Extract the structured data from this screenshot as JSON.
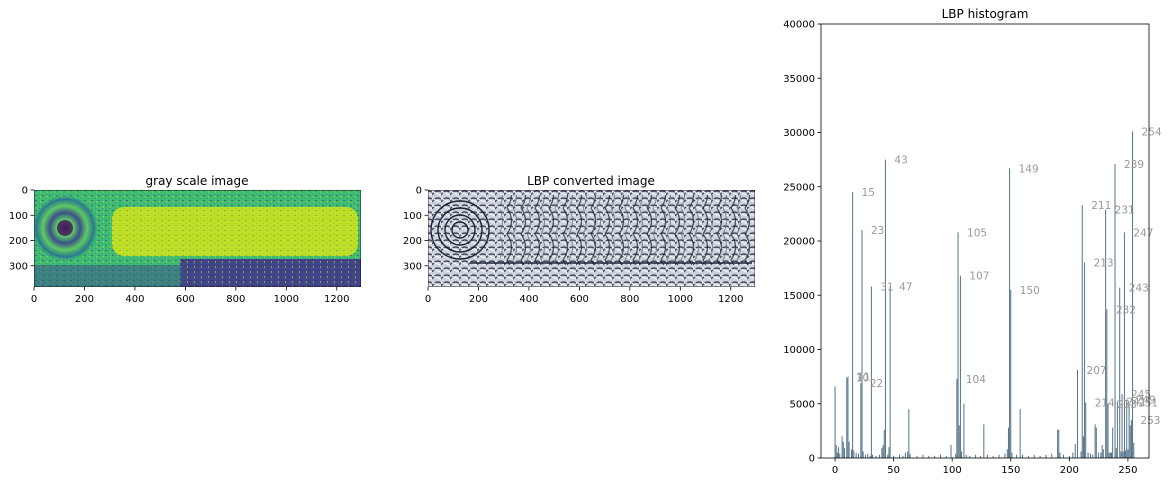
{
  "chart_data": [
    {
      "type": "image",
      "title": "gray scale image",
      "x_ticks": [
        "0",
        "200",
        "400",
        "600",
        "800",
        "1000",
        "1200"
      ],
      "y_ticks": [
        "0",
        "100",
        "200",
        "300"
      ],
      "xlim": [
        0,
        1296
      ],
      "ylim": [
        384,
        0
      ],
      "colormap": "viridis"
    },
    {
      "type": "image",
      "title": "LBP converted image",
      "x_ticks": [
        "0",
        "200",
        "400",
        "600",
        "800",
        "1000",
        "1200"
      ],
      "y_ticks": [
        "0",
        "100",
        "200",
        "300"
      ],
      "xlim": [
        0,
        1296
      ],
      "ylim": [
        384,
        0
      ],
      "colormap": "bone"
    },
    {
      "type": "bar",
      "title": "LBP histogram",
      "xlim": [
        -12,
        268
      ],
      "ylim": [
        0,
        40000
      ],
      "x_ticks": [
        "0",
        "50",
        "100",
        "150",
        "200",
        "250"
      ],
      "y_ticks": [
        "0",
        "5000",
        "10000",
        "15000",
        "20000",
        "25000",
        "30000",
        "35000",
        "40000"
      ],
      "bar_color": "#4a6a80",
      "label_color": "#999999",
      "bins": [
        {
          "x": 0,
          "value": 6600,
          "label": ""
        },
        {
          "x": 1,
          "value": 1200,
          "label": ""
        },
        {
          "x": 2,
          "value": 500,
          "label": ""
        },
        {
          "x": 3,
          "value": 1000,
          "label": ""
        },
        {
          "x": 4,
          "value": 400,
          "label": ""
        },
        {
          "x": 6,
          "value": 2000,
          "label": ""
        },
        {
          "x": 7,
          "value": 1500,
          "label": ""
        },
        {
          "x": 8,
          "value": 900,
          "label": ""
        },
        {
          "x": 10,
          "value": 7400,
          "label": "10"
        },
        {
          "x": 11,
          "value": 7500,
          "label": "11"
        },
        {
          "x": 12,
          "value": 1500,
          "label": ""
        },
        {
          "x": 14,
          "value": 800,
          "label": ""
        },
        {
          "x": 15,
          "value": 24500,
          "label": "15"
        },
        {
          "x": 16,
          "value": 700,
          "label": ""
        },
        {
          "x": 18,
          "value": 500,
          "label": ""
        },
        {
          "x": 20,
          "value": 400,
          "label": ""
        },
        {
          "x": 22,
          "value": 6900,
          "label": "22"
        },
        {
          "x": 23,
          "value": 21000,
          "label": "23"
        },
        {
          "x": 24,
          "value": 600,
          "label": ""
        },
        {
          "x": 26,
          "value": 300,
          "label": ""
        },
        {
          "x": 28,
          "value": 400,
          "label": ""
        },
        {
          "x": 30,
          "value": 200,
          "label": ""
        },
        {
          "x": 31,
          "value": 15800,
          "label": "31"
        },
        {
          "x": 32,
          "value": 300,
          "label": ""
        },
        {
          "x": 35,
          "value": 200,
          "label": ""
        },
        {
          "x": 38,
          "value": 300,
          "label": ""
        },
        {
          "x": 40,
          "value": 900,
          "label": ""
        },
        {
          "x": 41,
          "value": 1200,
          "label": ""
        },
        {
          "x": 42,
          "value": 2600,
          "label": ""
        },
        {
          "x": 43,
          "value": 27500,
          "label": "43"
        },
        {
          "x": 45,
          "value": 300,
          "label": ""
        },
        {
          "x": 46,
          "value": 1000,
          "label": ""
        },
        {
          "x": 47,
          "value": 15800,
          "label": "47"
        },
        {
          "x": 50,
          "value": 200,
          "label": ""
        },
        {
          "x": 55,
          "value": 300,
          "label": ""
        },
        {
          "x": 58,
          "value": 200,
          "label": ""
        },
        {
          "x": 60,
          "value": 500,
          "label": ""
        },
        {
          "x": 62,
          "value": 600,
          "label": ""
        },
        {
          "x": 63,
          "value": 4500,
          "label": ""
        },
        {
          "x": 64,
          "value": 400,
          "label": ""
        },
        {
          "x": 70,
          "value": 200,
          "label": ""
        },
        {
          "x": 75,
          "value": 300,
          "label": ""
        },
        {
          "x": 80,
          "value": 200,
          "label": ""
        },
        {
          "x": 85,
          "value": 200,
          "label": ""
        },
        {
          "x": 90,
          "value": 300,
          "label": ""
        },
        {
          "x": 95,
          "value": 200,
          "label": ""
        },
        {
          "x": 99,
          "value": 1200,
          "label": ""
        },
        {
          "x": 103,
          "value": 400,
          "label": ""
        },
        {
          "x": 104,
          "value": 7300,
          "label": "104"
        },
        {
          "x": 105,
          "value": 20800,
          "label": "105"
        },
        {
          "x": 106,
          "value": 3000,
          "label": ""
        },
        {
          "x": 107,
          "value": 16800,
          "label": "107"
        },
        {
          "x": 108,
          "value": 600,
          "label": ""
        },
        {
          "x": 110,
          "value": 5000,
          "label": ""
        },
        {
          "x": 112,
          "value": 300,
          "label": ""
        },
        {
          "x": 115,
          "value": 200,
          "label": ""
        },
        {
          "x": 120,
          "value": 300,
          "label": ""
        },
        {
          "x": 124,
          "value": 200,
          "label": ""
        },
        {
          "x": 127,
          "value": 3100,
          "label": ""
        },
        {
          "x": 130,
          "value": 300,
          "label": ""
        },
        {
          "x": 135,
          "value": 200,
          "label": ""
        },
        {
          "x": 140,
          "value": 300,
          "label": ""
        },
        {
          "x": 145,
          "value": 400,
          "label": ""
        },
        {
          "x": 147,
          "value": 800,
          "label": ""
        },
        {
          "x": 148,
          "value": 2800,
          "label": ""
        },
        {
          "x": 149,
          "value": 26700,
          "label": "149"
        },
        {
          "x": 150,
          "value": 15500,
          "label": "150"
        },
        {
          "x": 151,
          "value": 500,
          "label": ""
        },
        {
          "x": 155,
          "value": 300,
          "label": ""
        },
        {
          "x": 158,
          "value": 4500,
          "label": ""
        },
        {
          "x": 160,
          "value": 300,
          "label": ""
        },
        {
          "x": 165,
          "value": 200,
          "label": ""
        },
        {
          "x": 170,
          "value": 300,
          "label": ""
        },
        {
          "x": 175,
          "value": 200,
          "label": ""
        },
        {
          "x": 180,
          "value": 300,
          "label": ""
        },
        {
          "x": 185,
          "value": 400,
          "label": ""
        },
        {
          "x": 190,
          "value": 2600,
          "label": ""
        },
        {
          "x": 191,
          "value": 2600,
          "label": ""
        },
        {
          "x": 192,
          "value": 500,
          "label": ""
        },
        {
          "x": 195,
          "value": 300,
          "label": ""
        },
        {
          "x": 200,
          "value": 200,
          "label": ""
        },
        {
          "x": 203,
          "value": 500,
          "label": ""
        },
        {
          "x": 205,
          "value": 1300,
          "label": ""
        },
        {
          "x": 207,
          "value": 8100,
          "label": "207"
        },
        {
          "x": 210,
          "value": 600,
          "label": ""
        },
        {
          "x": 211,
          "value": 23300,
          "label": "211"
        },
        {
          "x": 212,
          "value": 2000,
          "label": ""
        },
        {
          "x": 213,
          "value": 18000,
          "label": "213"
        },
        {
          "x": 214,
          "value": 5100,
          "label": "214"
        },
        {
          "x": 216,
          "value": 500,
          "label": ""
        },
        {
          "x": 218,
          "value": 400,
          "label": ""
        },
        {
          "x": 220,
          "value": 300,
          "label": ""
        },
        {
          "x": 222,
          "value": 3100,
          "label": ""
        },
        {
          "x": 223,
          "value": 2800,
          "label": ""
        },
        {
          "x": 225,
          "value": 500,
          "label": ""
        },
        {
          "x": 227,
          "value": 500,
          "label": ""
        },
        {
          "x": 228,
          "value": 1200,
          "label": ""
        },
        {
          "x": 229,
          "value": 800,
          "label": ""
        },
        {
          "x": 231,
          "value": 22900,
          "label": "231"
        },
        {
          "x": 232,
          "value": 13700,
          "label": "232"
        },
        {
          "x": 233,
          "value": 5000,
          "label": "233"
        },
        {
          "x": 234,
          "value": 500,
          "label": ""
        },
        {
          "x": 235,
          "value": 500,
          "label": ""
        },
        {
          "x": 236,
          "value": 500,
          "label": ""
        },
        {
          "x": 237,
          "value": 2800,
          "label": ""
        },
        {
          "x": 239,
          "value": 27100,
          "label": "239"
        },
        {
          "x": 240,
          "value": 900,
          "label": ""
        },
        {
          "x": 241,
          "value": 5200,
          "label": "241"
        },
        {
          "x": 243,
          "value": 15700,
          "label": "243"
        },
        {
          "x": 244,
          "value": 600,
          "label": ""
        },
        {
          "x": 245,
          "value": 5900,
          "label": "245"
        },
        {
          "x": 246,
          "value": 600,
          "label": ""
        },
        {
          "x": 247,
          "value": 20800,
          "label": "247"
        },
        {
          "x": 248,
          "value": 700,
          "label": ""
        },
        {
          "x": 249,
          "value": 5400,
          "label": "249"
        },
        {
          "x": 250,
          "value": 800,
          "label": ""
        },
        {
          "x": 251,
          "value": 5100,
          "label": "251"
        },
        {
          "x": 252,
          "value": 3000,
          "label": ""
        },
        {
          "x": 253,
          "value": 3500,
          "label": "253"
        },
        {
          "x": 254,
          "value": 30100,
          "label": "254"
        },
        {
          "x": 255,
          "value": 1400,
          "label": ""
        }
      ]
    }
  ]
}
